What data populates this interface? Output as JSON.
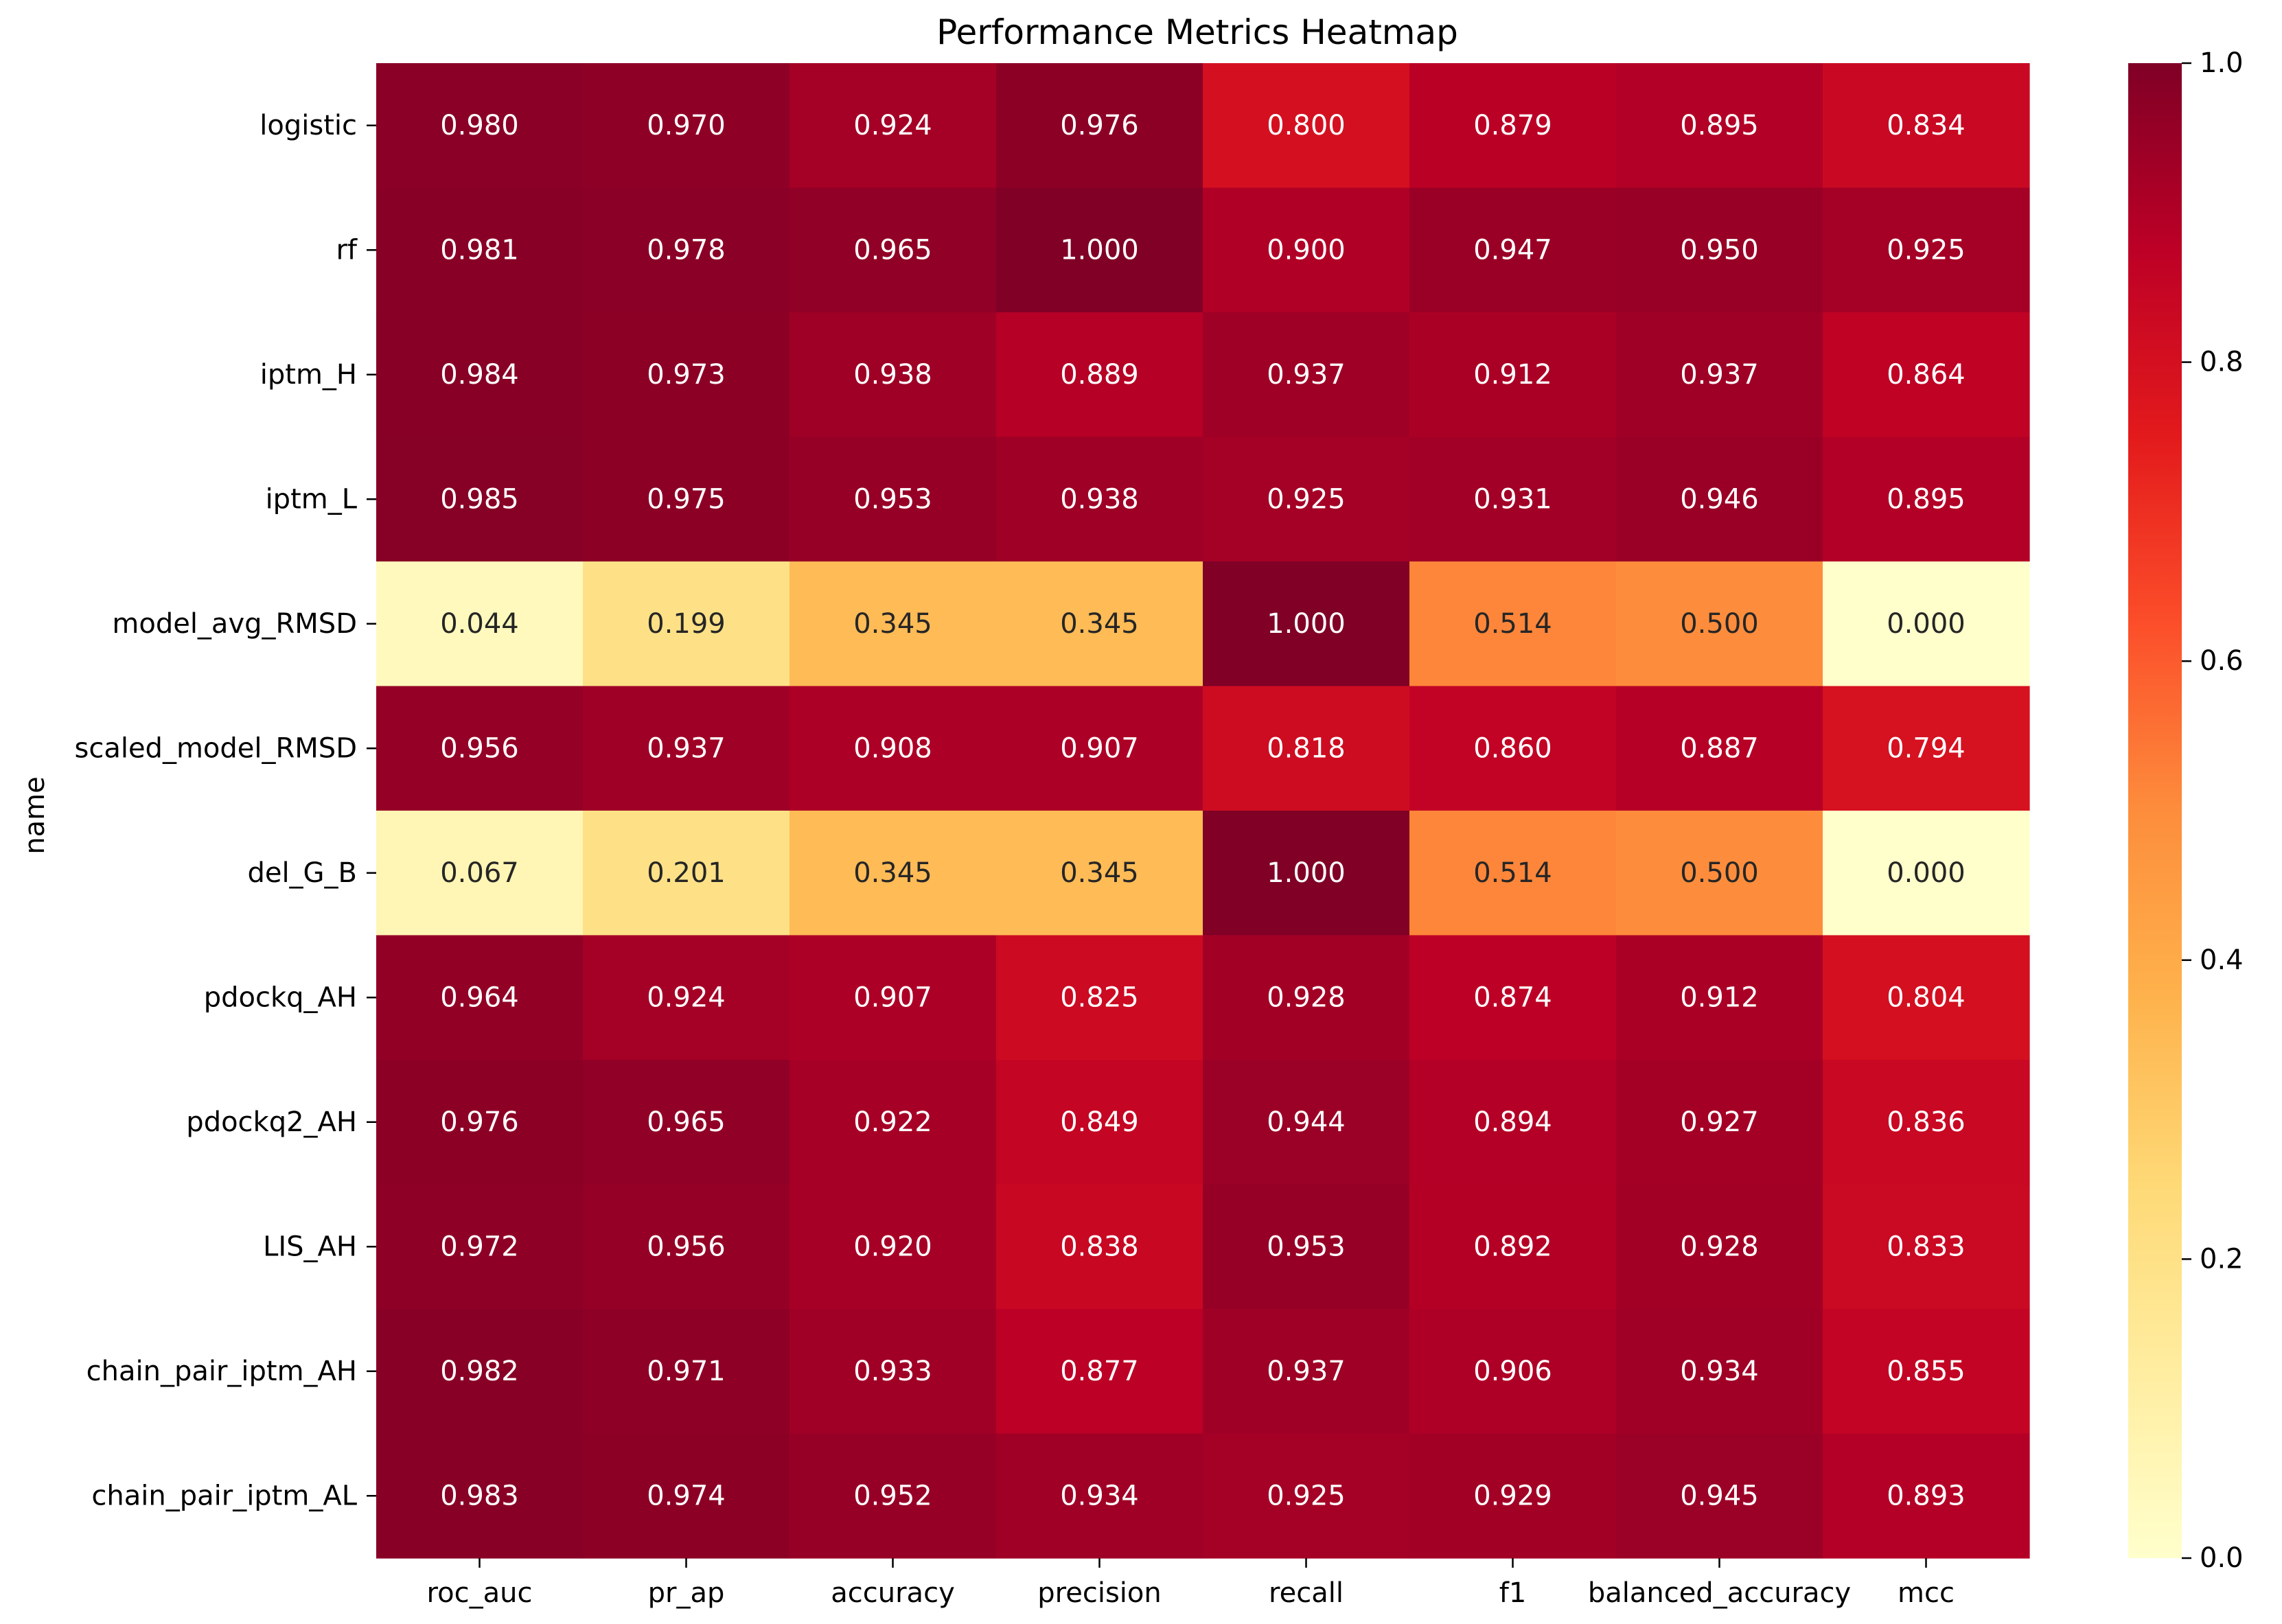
{
  "chart_data": {
    "type": "heatmap",
    "title": "Performance Metrics Heatmap",
    "xlabel": "",
    "ylabel": "name",
    "columns": [
      "roc_auc",
      "pr_ap",
      "accuracy",
      "precision",
      "recall",
      "f1",
      "balanced_accuracy",
      "mcc"
    ],
    "rows": [
      "logistic",
      "rf",
      "iptm_H",
      "iptm_L",
      "model_avg_RMSD",
      "scaled_model_RMSD",
      "del_G_B",
      "pdockq_AH",
      "pdockq2_AH",
      "LIS_AH",
      "chain_pair_iptm_AH",
      "chain_pair_iptm_AL"
    ],
    "values": [
      [
        0.98,
        0.97,
        0.924,
        0.976,
        0.8,
        0.879,
        0.895,
        0.834
      ],
      [
        0.981,
        0.978,
        0.965,
        1.0,
        0.9,
        0.947,
        0.95,
        0.925
      ],
      [
        0.984,
        0.973,
        0.938,
        0.889,
        0.937,
        0.912,
        0.937,
        0.864
      ],
      [
        0.985,
        0.975,
        0.953,
        0.938,
        0.925,
        0.931,
        0.946,
        0.895
      ],
      [
        0.044,
        0.199,
        0.345,
        0.345,
        1.0,
        0.514,
        0.5,
        0.0
      ],
      [
        0.956,
        0.937,
        0.908,
        0.907,
        0.818,
        0.86,
        0.887,
        0.794
      ],
      [
        0.067,
        0.201,
        0.345,
        0.345,
        1.0,
        0.514,
        0.5,
        0.0
      ],
      [
        0.964,
        0.924,
        0.907,
        0.825,
        0.928,
        0.874,
        0.912,
        0.804
      ],
      [
        0.976,
        0.965,
        0.922,
        0.849,
        0.944,
        0.894,
        0.927,
        0.836
      ],
      [
        0.972,
        0.956,
        0.92,
        0.838,
        0.953,
        0.892,
        0.928,
        0.833
      ],
      [
        0.982,
        0.971,
        0.933,
        0.877,
        0.937,
        0.906,
        0.934,
        0.855
      ],
      [
        0.983,
        0.974,
        0.952,
        0.934,
        0.925,
        0.929,
        0.945,
        0.893
      ]
    ],
    "value_format": "0.000",
    "colormap": "YlOrRd",
    "color_stops": [
      "#ffffcc",
      "#ffeda0",
      "#fed976",
      "#feb24c",
      "#fd8d3c",
      "#fc4e2a",
      "#e31a1c",
      "#bd0026",
      "#800026"
    ],
    "vmin": 0.0,
    "vmax": 1.0,
    "colorbar_ticks": [
      "0.0",
      "0.2",
      "0.4",
      "0.6",
      "0.8",
      "1.0"
    ],
    "grid": false,
    "legend": "colorbar-right"
  }
}
